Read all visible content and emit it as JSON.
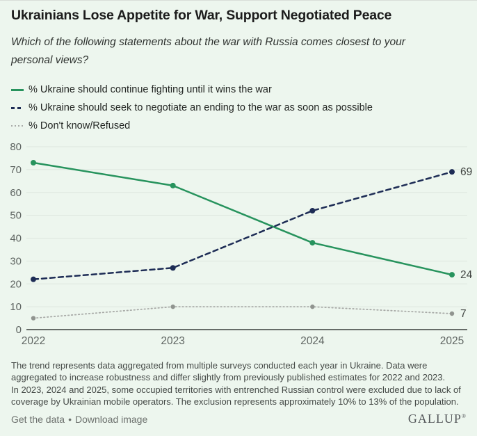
{
  "header": {
    "title": "Ukrainians Lose Appetite for War, Support Negotiated Peace",
    "subtitle": "Which of the following statements about the war with Russia comes closest to your personal views?"
  },
  "legend": {
    "items": [
      {
        "key": "fighting",
        "label": "% Ukraine should continue fighting until it wins the war",
        "color": "#27935d",
        "style": "solid"
      },
      {
        "key": "negotiate",
        "label": "% Ukraine should seek to negotiate an ending to the war as soon as possible",
        "color": "#1d2c55",
        "style": "dashed"
      },
      {
        "key": "dont-know",
        "label": "% Don't know/Refused",
        "color": "#a8aaa7",
        "style": "dotted"
      }
    ]
  },
  "chart_data": {
    "type": "line",
    "x": [
      "2022",
      "2023",
      "2024",
      "2025"
    ],
    "series": [
      {
        "key": "dont-know",
        "name": "% Don't know/Refused",
        "values": [
          5,
          10,
          10,
          7
        ],
        "color": "#a8aaa7",
        "marker_color": "#90948f",
        "dash": "dotted",
        "end_label": "7"
      },
      {
        "key": "fighting",
        "name": "% Ukraine should continue fighting until it wins the war",
        "values": [
          73,
          63,
          38,
          24
        ],
        "color": "#27935d",
        "marker_color": "#27935d",
        "dash": "solid",
        "end_label": "24"
      },
      {
        "key": "negotiate",
        "name": "% Ukraine should seek to negotiate an ending to the war as soon as possible",
        "values": [
          22,
          27,
          52,
          69
        ],
        "color": "#1d2c55",
        "marker_color": "#1d2c55",
        "dash": "dashed",
        "end_label": "69"
      }
    ],
    "ylim": [
      0,
      80
    ],
    "yticks": [
      0,
      10,
      20,
      30,
      40,
      50,
      60,
      70,
      80
    ],
    "grid": true,
    "legend_position": "top-left",
    "title": "Ukrainians Lose Appetite for War, Support Negotiated Peace",
    "xlabel": "",
    "ylabel": ""
  },
  "notes": [
    "The trend represents data aggregated from multiple surveys conducted each year in Ukraine. Data were aggregated to increase robustness and differ slightly from previously published estimates for 2022 and 2023.",
    "In 2023, 2024 and 2025, some occupied territories with entrenched Russian control were excluded due to lack of coverage by Ukrainian mobile operators. The exclusion represents approximately 10% to 13% of the population."
  ],
  "footer": {
    "links": [
      {
        "label": "Get the data"
      },
      {
        "label": "Download image"
      }
    ],
    "separator": "•",
    "brand": "GALLUP",
    "brand_mark": "®"
  },
  "colors": {
    "background": "#edf6ee",
    "grid": "#dde6de",
    "axis": "#3a3f3c",
    "tick_label": "#5f6562",
    "title": "#1c1c1c",
    "green": "#27935d",
    "navy": "#1d2c55",
    "gray": "#a8aaa7"
  }
}
